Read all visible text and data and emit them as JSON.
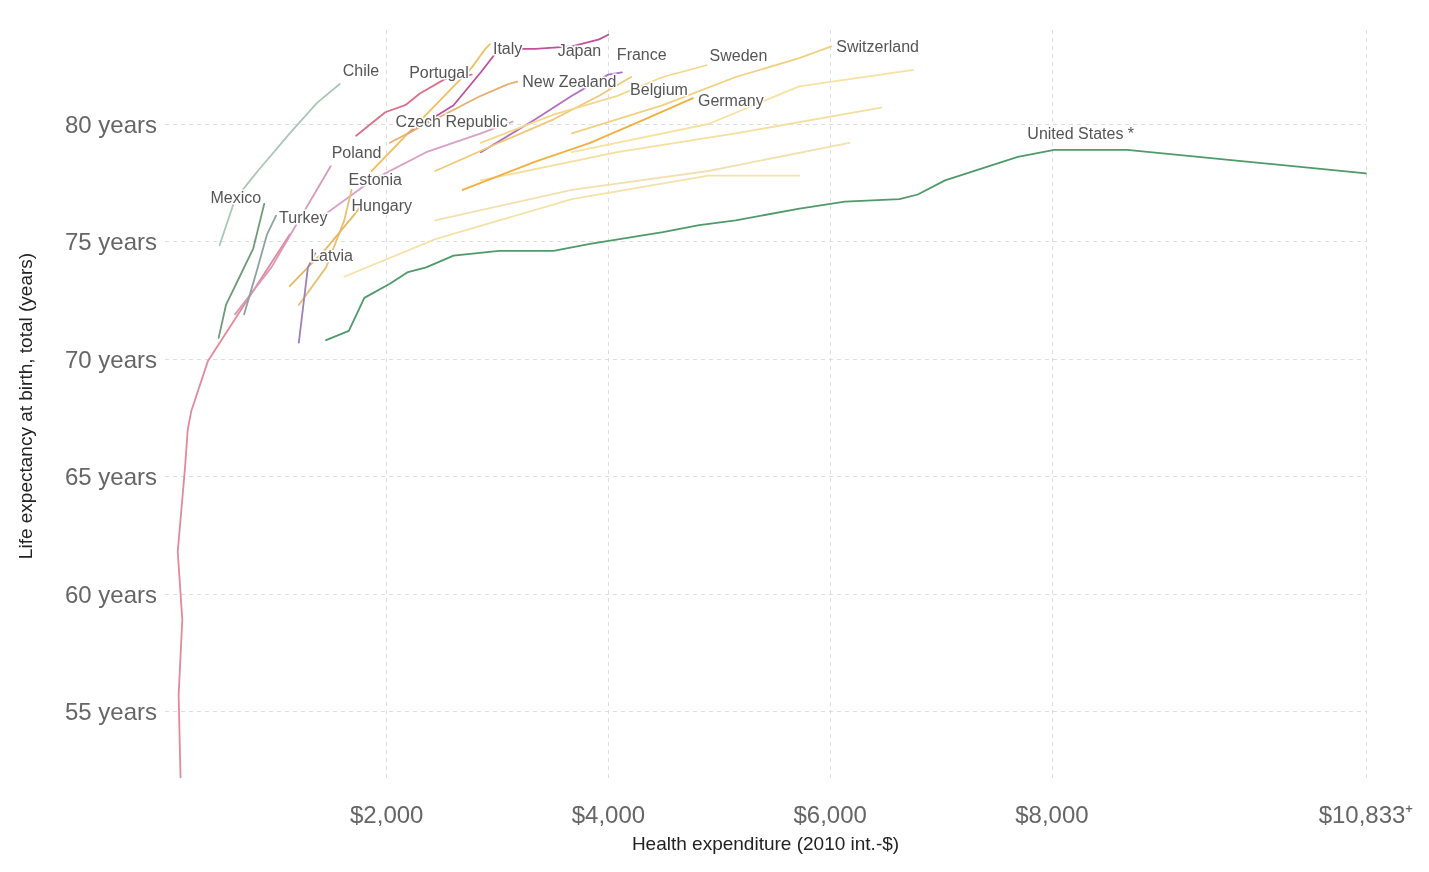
{
  "chart_data": {
    "type": "line",
    "xlabel": "Health expenditure (2010 int.-$)",
    "ylabel": "Life expectancy at birth, total (years)",
    "xlim": [
      0,
      10833
    ],
    "xticks": [
      {
        "value": 2000,
        "label": "$2,000"
      },
      {
        "value": 4000,
        "label": "$4,000"
      },
      {
        "value": 6000,
        "label": "$6,000"
      },
      {
        "value": 8000,
        "label": "$8,000"
      },
      {
        "value": 10833,
        "label": "$10,833⁺"
      }
    ],
    "ylim": [
      52,
      84
    ],
    "yticks": [
      {
        "value": 55,
        "label": "55 years"
      },
      {
        "value": 60,
        "label": "60 years"
      },
      {
        "value": 65,
        "label": "65 years"
      },
      {
        "value": 70,
        "label": "70 years"
      },
      {
        "value": 75,
        "label": "75 years"
      },
      {
        "value": 80,
        "label": "80 years"
      }
    ],
    "grid": true,
    "legend": false,
    "marker": "none",
    "line_style": "solid",
    "series": [
      {
        "color": "#f7e2a0",
        "x": [
          3670,
          4901,
          5722,
          6749
        ],
        "values": [
          78.8,
          80.0,
          81.6,
          82.3
        ]
      },
      {
        "color": "#f5dfa0",
        "x": [
          2849,
          4080,
          5148,
          6461
        ],
        "values": [
          77.6,
          78.8,
          79.6,
          80.7
        ]
      },
      {
        "color": "#f3e0b0",
        "x": [
          2438,
          3670,
          4901,
          6174
        ],
        "values": [
          75.9,
          77.2,
          78.0,
          79.2
        ]
      },
      {
        "color": "#f5e2a8",
        "x": [
          1617,
          2438,
          3670,
          4901,
          5722
        ],
        "values": [
          73.5,
          75.1,
          76.8,
          77.8,
          77.8
        ]
      },
      {
        "color": "#e4899a",
        "x": [
          140,
          123,
          156,
          115,
          181,
          205,
          238,
          386,
          632,
          878,
          1125
        ],
        "values": [
          52.2,
          55.7,
          58.9,
          61.8,
          65.4,
          67.0,
          67.8,
          69.9,
          71.7,
          73.5,
          75.3
        ]
      },
      {
        "name": "Chile",
        "color": "#a8c8b4",
        "x": [
          493,
          632,
          837,
          1125,
          1371,
          1576
        ],
        "values": [
          74.85,
          76.8,
          78.0,
          79.6,
          80.9,
          81.7
        ]
      },
      {
        "name": "Portugal",
        "color": "#d9708f",
        "x": [
          1724,
          1987,
          2167,
          2299,
          2520,
          2767
        ],
        "values": [
          79.5,
          80.5,
          80.8,
          81.3,
          81.9,
          82.1
        ]
      },
      {
        "name": "Italy",
        "color": "#f0c060",
        "x": [
          1864,
          2192,
          2520,
          2767,
          2890,
          2931
        ],
        "values": [
          78.0,
          79.6,
          81.2,
          82.4,
          83.2,
          83.4
        ]
      },
      {
        "name": "Japan",
        "color": "#c0509a",
        "x": [
          2192,
          2603,
          2849,
          3013,
          3341,
          3670,
          3916,
          3998
        ],
        "values": [
          79.6,
          80.8,
          82.2,
          83.2,
          83.2,
          83.3,
          83.6,
          83.8
        ]
      },
      {
        "name": "France",
        "color": "#b070c0",
        "x": [
          2849,
          3341,
          3670,
          3998,
          4121
        ],
        "values": [
          78.8,
          80.2,
          81.2,
          82.1,
          82.2
        ]
      },
      {
        "name": "New Zealand",
        "color": "#e6b070",
        "x": [
          2028,
          2438,
          2849,
          3095,
          3177
        ],
        "values": [
          79.2,
          80.2,
          81.2,
          81.7,
          81.8
        ]
      },
      {
        "name": "Czech Republic",
        "color": "#d8a0c8",
        "x": [
          1371,
          1864,
          2356,
          2849,
          3136
        ],
        "values": [
          75.9,
          77.6,
          78.8,
          79.6,
          80.1
        ]
      },
      {
        "name": "Belgium",
        "color": "#f0c878",
        "x": [
          2438,
          3013,
          3505,
          3916,
          4204
        ],
        "values": [
          78.0,
          79.2,
          80.2,
          81.2,
          82.0
        ]
      },
      {
        "name": "Germany",
        "color": "#f0b040",
        "x": [
          2685,
          3341,
          3834,
          4327,
          4762
        ],
        "values": [
          77.2,
          78.4,
          79.2,
          80.2,
          81.1
        ]
      },
      {
        "name": "Sweden",
        "color": "#f5d78c",
        "x": [
          2849,
          3505,
          4080,
          4491,
          4885
        ],
        "values": [
          79.2,
          80.4,
          81.2,
          82.0,
          82.5
        ]
      },
      {
        "name": "Switzerland",
        "color": "#f2d080",
        "x": [
          3670,
          4491,
          5148,
          5722,
          6010
        ],
        "values": [
          79.6,
          80.8,
          82.0,
          82.8,
          83.3
        ]
      },
      {
        "name": "Poland",
        "color": "#d898b8",
        "x": [
          632,
          960,
          1207,
          1494
        ],
        "values": [
          71.9,
          73.9,
          75.9,
          78.2
        ]
      },
      {
        "name": "Mexico",
        "color": "#6f9a7a",
        "x": [
          484,
          550,
          673,
          796,
          895
        ],
        "values": [
          70.9,
          72.3,
          73.5,
          74.7,
          76.6
        ]
      },
      {
        "name": "Estonia",
        "color": "#e8c070",
        "x": [
          1207,
          1453,
          1617,
          1683
        ],
        "values": [
          72.3,
          73.9,
          75.9,
          77.2
        ]
      },
      {
        "name": "Hungary",
        "color": "#e8b860",
        "x": [
          1125,
          1453,
          1700,
          1782
        ],
        "values": [
          73.1,
          74.7,
          76.1,
          76.6
        ]
      },
      {
        "name": "Turkey",
        "color": "#90a0a0",
        "x": [
          714,
          837,
          920,
          1002
        ],
        "values": [
          71.9,
          73.9,
          75.3,
          76.1
        ]
      },
      {
        "name": "Latvia",
        "color": "#a080b8",
        "x": [
          1207,
          1248,
          1289,
          1355
        ],
        "values": [
          70.7,
          72.3,
          73.9,
          74.5
        ]
      },
      {
        "name": "United States *",
        "color": "#4f9a6a",
        "x": [
          1453,
          1658,
          1798,
          2028,
          2192,
          2356,
          2602,
          3013,
          3505,
          3834,
          4491,
          4819,
          5148,
          5723,
          6133,
          6625,
          6790,
          7036,
          7364,
          7693,
          8021,
          8678,
          10833
        ],
        "values": [
          70.8,
          71.2,
          72.6,
          73.2,
          73.7,
          73.9,
          74.4,
          74.6,
          74.6,
          74.9,
          75.4,
          75.7,
          75.9,
          76.4,
          76.7,
          76.8,
          77.0,
          77.6,
          78.1,
          78.6,
          78.9,
          78.9,
          77.9
        ]
      }
    ]
  }
}
